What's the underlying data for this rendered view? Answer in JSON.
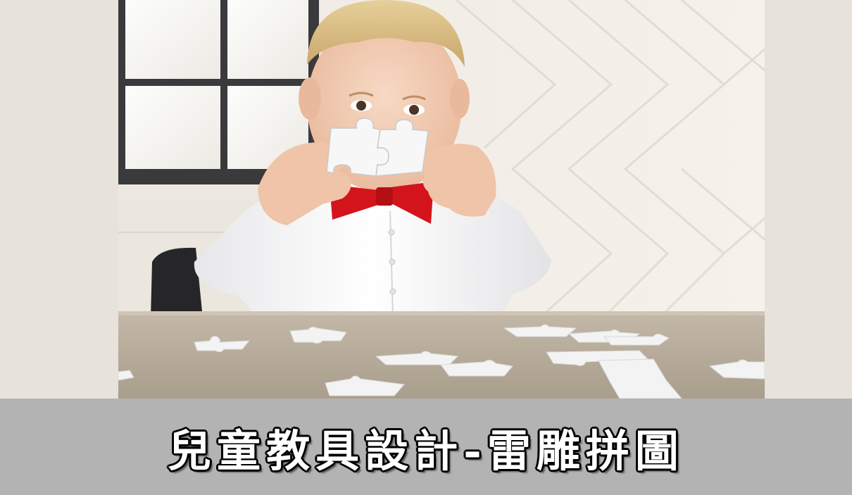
{
  "caption": {
    "title": "兒童教具設計-雷雕拼圖"
  },
  "colors": {
    "side_panel": "#e7e3da",
    "caption_bar": "#b3b3b3",
    "caption_text": "#ffffff",
    "bow_tie": "#d3141b",
    "table": "#b9ad9c",
    "puzzle_piece": "#f7f7f7"
  },
  "photo": {
    "subject_icons": [
      "child-figure",
      "puzzle-piece-icon",
      "window-icon",
      "chair-icon",
      "table-surface"
    ]
  }
}
